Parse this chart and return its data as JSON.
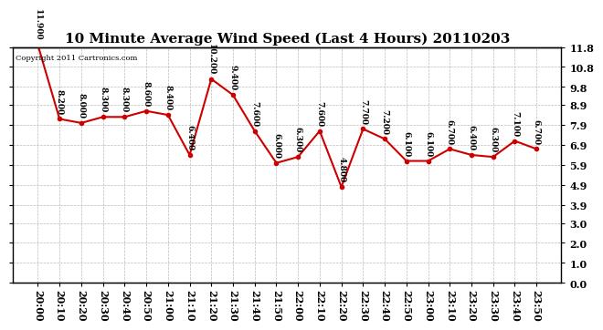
{
  "title": "10 Minute Average Wind Speed (Last 4 Hours) 20110203",
  "copyright": "Copyright 2011 Cartronics.com",
  "x_labels": [
    "20:00",
    "20:10",
    "20:20",
    "20:30",
    "20:40",
    "20:50",
    "21:00",
    "21:10",
    "21:20",
    "21:30",
    "21:40",
    "21:50",
    "22:00",
    "22:10",
    "22:20",
    "22:30",
    "22:40",
    "22:50",
    "23:00",
    "23:10",
    "23:20",
    "23:30",
    "23:40",
    "23:50"
  ],
  "y_values": [
    11.9,
    8.2,
    8.0,
    8.3,
    8.3,
    8.6,
    8.4,
    6.4,
    10.2,
    9.4,
    7.6,
    6.0,
    6.3,
    7.6,
    4.8,
    7.7,
    7.2,
    6.1,
    6.1,
    6.7,
    6.4,
    6.3,
    7.1,
    6.7
  ],
  "data_labels": [
    "11.900",
    "8.200",
    "8.000",
    "8.300",
    "8.300",
    "8.600",
    "8.400",
    "6.400",
    "10.200",
    "9.400",
    "7.600",
    "6.000",
    "6.300",
    "7.600",
    "4.800",
    "7.700",
    "7.200",
    "6.100",
    "6.100",
    "6.700",
    "6.400",
    "6.300",
    "7.100",
    "6.700"
  ],
  "y_tick_vals": [
    0.0,
    1.0,
    2.0,
    3.0,
    3.9,
    4.9,
    5.9,
    6.9,
    7.9,
    8.9,
    9.8,
    10.8,
    11.8
  ],
  "y_tick_labels": [
    "0.0",
    "1.0",
    "2.0",
    "3.0",
    "3.9",
    "4.9",
    "5.9",
    "6.9",
    "7.9",
    "8.9",
    "9.8",
    "10.8",
    "11.8"
  ],
  "line_color": "#cc0000",
  "bg_color": "#ffffff",
  "grid_color": "#bbbbbb",
  "ylim_min": 0.0,
  "ylim_max": 11.8,
  "title_fontsize": 11,
  "tick_fontsize": 8,
  "label_fontsize": 6.5
}
